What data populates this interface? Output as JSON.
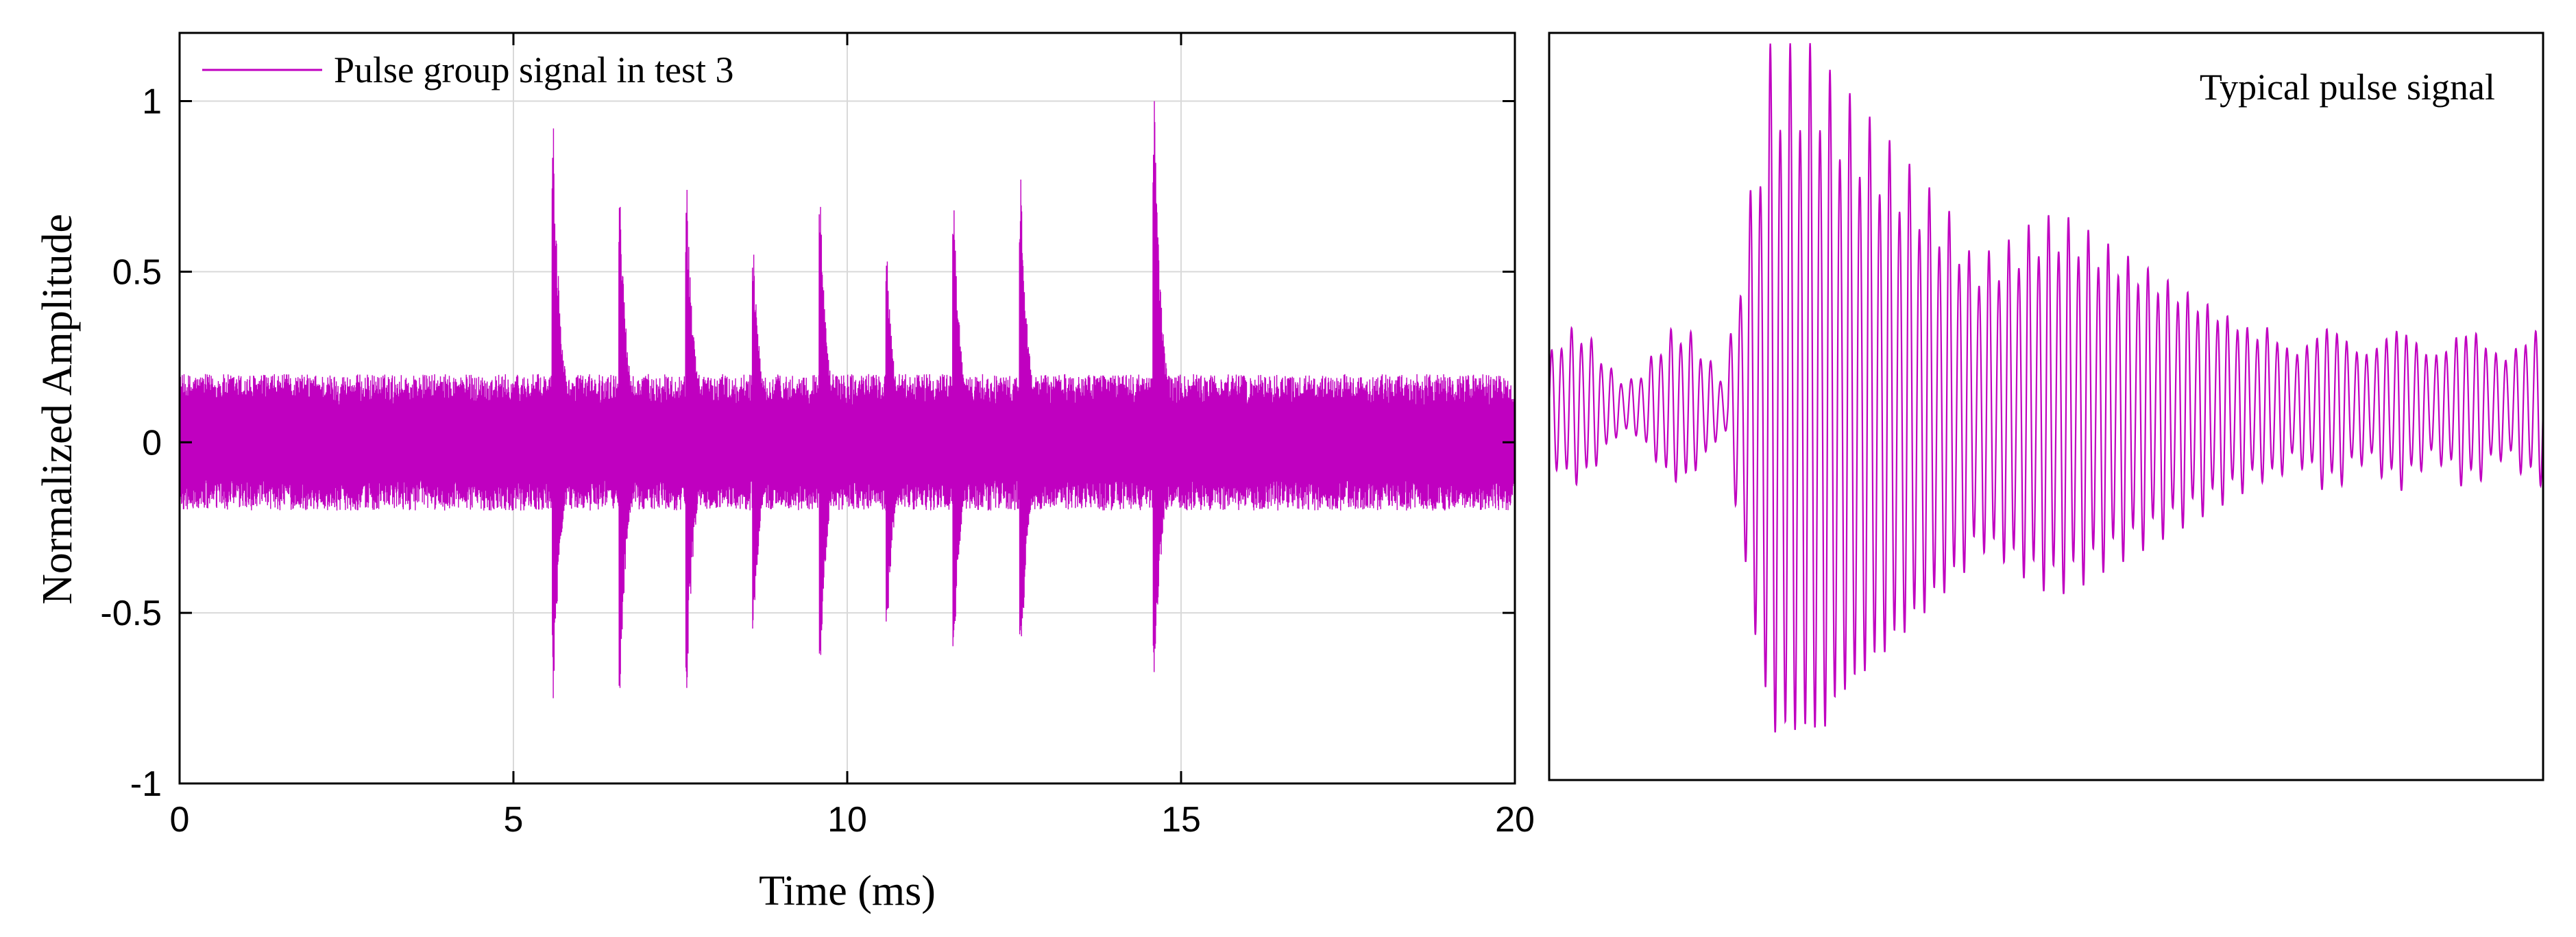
{
  "colors": {
    "series": "#C000C0",
    "axis": "#000000",
    "grid": "#D9D9D9",
    "background": "#FFFFFF"
  },
  "chart_data": [
    {
      "type": "line",
      "title": "",
      "xlabel": "Time (ms)",
      "ylabel": "Normalized Amplitude",
      "xlim": [
        0,
        20
      ],
      "ylim": [
        -1,
        1.2
      ],
      "xticks": [
        0,
        5,
        10,
        15,
        20
      ],
      "xtick_labels": [
        "0",
        "5",
        "10",
        "15",
        "20"
      ],
      "yticks": [
        -1,
        -0.5,
        0,
        0.5,
        1
      ],
      "ytick_labels": [
        "-1",
        "-0.5",
        "0",
        "0.5",
        "1"
      ],
      "grid": true,
      "legend": {
        "placement": "top-left",
        "entries": [
          "Pulse group signal in test 3"
        ]
      },
      "series": [
        {
          "name": "Pulse group signal in test 3",
          "kind": "dense oscillating noise with pulse bursts",
          "baseline_noise_amplitude": 0.2,
          "pulses": [
            {
              "t": 5.6,
              "max": 0.92,
              "min": -0.75
            },
            {
              "t": 6.6,
              "max": 0.69,
              "min": -0.72
            },
            {
              "t": 7.6,
              "max": 0.74,
              "min": -0.72
            },
            {
              "t": 8.6,
              "max": 0.55,
              "min": -0.56
            },
            {
              "t": 9.6,
              "max": 0.69,
              "min": -0.66
            },
            {
              "t": 10.6,
              "max": 0.53,
              "min": -0.58
            },
            {
              "t": 11.6,
              "max": 0.68,
              "min": -0.63
            },
            {
              "t": 12.6,
              "max": 0.77,
              "min": -0.7
            },
            {
              "t": 14.6,
              "max": 1.0,
              "min": -0.78
            }
          ]
        }
      ]
    },
    {
      "type": "line",
      "title": "Typical  pulse signal",
      "xlabel": "",
      "ylabel": "",
      "grid": false,
      "axes_ticks": false,
      "series": [
        {
          "kind": "single pulse waveform (oscillation with decaying envelope)",
          "peak_max": 1.07,
          "peak_min": -0.97
        }
      ]
    }
  ]
}
